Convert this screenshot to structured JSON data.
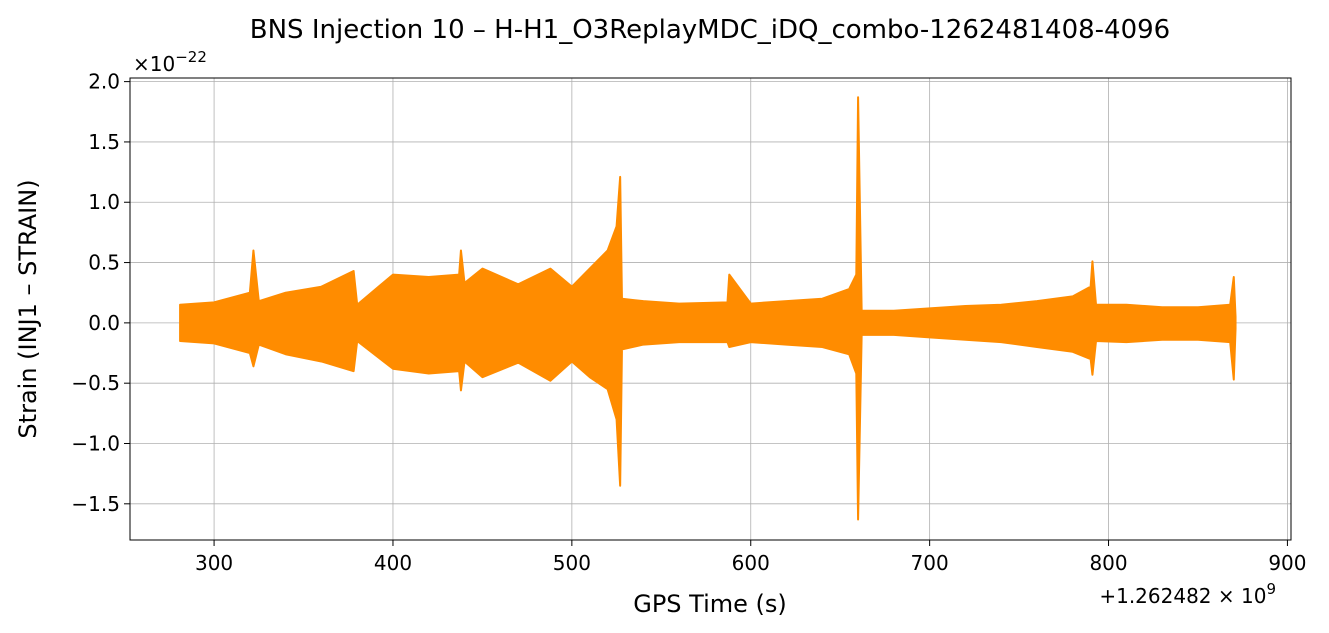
{
  "chart_data": {
    "type": "line",
    "title": "BNS Injection 10 – H-H1_O3ReplayMDC_iDQ_combo-1262481408-4096",
    "xlabel": "GPS Time (s)",
    "ylabel": "Strain (INJ1 – STRAIN)",
    "x_offset_label": "+1.262482 × 10",
    "x_offset_exponent": "9",
    "y_scale_label": "×10",
    "y_scale_exponent": "−22",
    "xlim": [
      253,
      902
    ],
    "ylim": [
      -1.8,
      2.03
    ],
    "x_ticks": [
      300,
      400,
      500,
      600,
      700,
      800,
      900
    ],
    "x_tick_labels": [
      "300",
      "400",
      "500",
      "600",
      "700",
      "800",
      "900"
    ],
    "y_ticks": [
      -1.5,
      -1.0,
      -0.5,
      0.0,
      0.5,
      1.0,
      1.5,
      2.0
    ],
    "y_tick_labels": [
      "−1.5",
      "−1.0",
      "−0.5",
      "0.0",
      "0.5",
      "1.0",
      "1.5",
      "2.0"
    ],
    "grid": true,
    "line_color": "#ff8c00",
    "series": [
      {
        "name": "",
        "x": [
          281,
          300,
          320,
          322,
          325,
          340,
          360,
          378,
          380,
          400,
          420,
          437,
          438,
          440,
          450,
          470,
          488,
          500,
          510,
          520,
          525,
          527,
          528,
          540,
          560,
          587,
          588,
          600,
          620,
          640,
          655,
          659,
          660,
          662,
          680,
          700,
          720,
          740,
          760,
          780,
          790,
          791,
          793,
          810,
          830,
          850,
          868,
          870,
          871
        ],
        "upper": [
          0.15,
          0.17,
          0.25,
          0.6,
          0.18,
          0.25,
          0.3,
          0.43,
          0.15,
          0.4,
          0.38,
          0.4,
          0.6,
          0.33,
          0.45,
          0.32,
          0.45,
          0.3,
          0.45,
          0.6,
          0.8,
          1.21,
          0.2,
          0.18,
          0.16,
          0.17,
          0.4,
          0.16,
          0.18,
          0.2,
          0.28,
          0.4,
          1.87,
          0.1,
          0.1,
          0.12,
          0.14,
          0.15,
          0.18,
          0.22,
          0.3,
          0.51,
          0.15,
          0.15,
          0.13,
          0.13,
          0.15,
          0.38,
          0.05
        ],
        "lower": [
          -0.15,
          -0.17,
          -0.25,
          -0.36,
          -0.18,
          -0.26,
          -0.32,
          -0.4,
          -0.15,
          -0.38,
          -0.42,
          -0.4,
          -0.56,
          -0.32,
          -0.45,
          -0.33,
          -0.48,
          -0.32,
          -0.45,
          -0.55,
          -0.8,
          -1.35,
          -0.22,
          -0.18,
          -0.16,
          -0.16,
          -0.2,
          -0.16,
          -0.18,
          -0.2,
          -0.26,
          -0.42,
          -1.63,
          -0.1,
          -0.1,
          -0.12,
          -0.14,
          -0.16,
          -0.2,
          -0.24,
          -0.3,
          -0.43,
          -0.15,
          -0.16,
          -0.14,
          -0.14,
          -0.16,
          -0.47,
          -0.05
        ]
      }
    ]
  }
}
